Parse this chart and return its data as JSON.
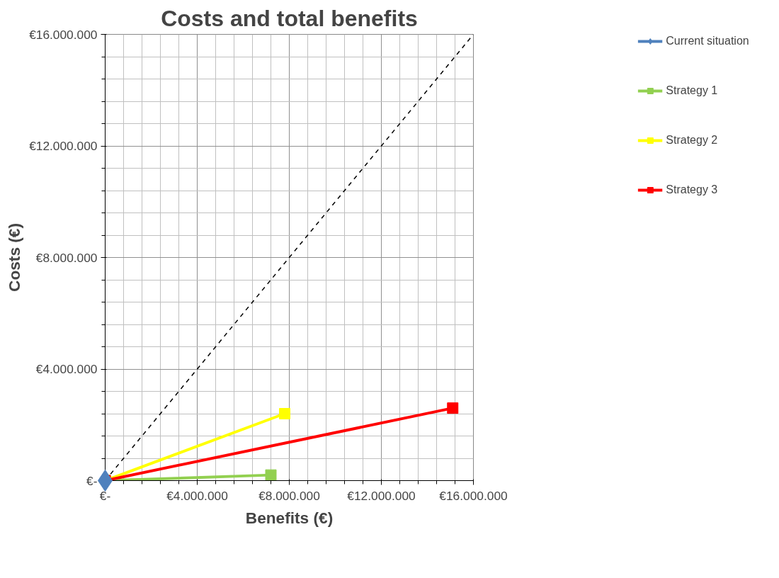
{
  "chart_data": {
    "type": "line",
    "title": "Costs and total benefits",
    "xlabel": "Benefits (€)",
    "ylabel": "Costs (€)",
    "xlim": [
      0,
      16000000
    ],
    "ylim": [
      0,
      16000000
    ],
    "xticks": [
      {
        "value": 0,
        "label": "€-"
      },
      {
        "value": 800000,
        "label": null
      },
      {
        "value": 1600000,
        "label": null
      },
      {
        "value": 2400000,
        "label": null
      },
      {
        "value": 3200000,
        "label": null
      },
      {
        "value": 4000000,
        "label": "€4.000.000"
      },
      {
        "value": 4800000,
        "label": null
      },
      {
        "value": 5600000,
        "label": null
      },
      {
        "value": 6400000,
        "label": null
      },
      {
        "value": 7200000,
        "label": null
      },
      {
        "value": 8000000,
        "label": "€8.000.000"
      },
      {
        "value": 8800000,
        "label": null
      },
      {
        "value": 9600000,
        "label": null
      },
      {
        "value": 10400000,
        "label": null
      },
      {
        "value": 11200000,
        "label": null
      },
      {
        "value": 12000000,
        "label": "€12.000.000"
      },
      {
        "value": 12800000,
        "label": null
      },
      {
        "value": 13600000,
        "label": null
      },
      {
        "value": 14400000,
        "label": null
      },
      {
        "value": 15200000,
        "label": null
      },
      {
        "value": 16000000,
        "label": "€16.000.000"
      }
    ],
    "yticks": [
      {
        "value": 0,
        "label": "€-"
      },
      {
        "value": 800000,
        "label": null
      },
      {
        "value": 1600000,
        "label": null
      },
      {
        "value": 2400000,
        "label": null
      },
      {
        "value": 3200000,
        "label": null
      },
      {
        "value": 4000000,
        "label": "€4.000.000"
      },
      {
        "value": 4800000,
        "label": null
      },
      {
        "value": 5600000,
        "label": null
      },
      {
        "value": 6400000,
        "label": null
      },
      {
        "value": 7200000,
        "label": null
      },
      {
        "value": 8000000,
        "label": "€8.000.000"
      },
      {
        "value": 8800000,
        "label": null
      },
      {
        "value": 9600000,
        "label": null
      },
      {
        "value": 10400000,
        "label": null
      },
      {
        "value": 11200000,
        "label": null
      },
      {
        "value": 12000000,
        "label": "€12.000.000"
      },
      {
        "value": 12800000,
        "label": null
      },
      {
        "value": 13600000,
        "label": null
      },
      {
        "value": 14400000,
        "label": null
      },
      {
        "value": 15200000,
        "label": null
      },
      {
        "value": 16000000,
        "label": "€16.000.000"
      }
    ],
    "grid": true,
    "legend": "right",
    "marker": "square",
    "line_style": "solid",
    "series": [
      {
        "color": "#000000",
        "x": [
          0,
          16000000
        ],
        "values": [
          0,
          16000000
        ],
        "line_style": "dashed",
        "marker": "none"
      },
      {
        "name": "Current situation",
        "color": "#4f81bd",
        "x": [
          0
        ],
        "values": [
          0
        ],
        "marker": "diamond"
      },
      {
        "name": "Strategy 1",
        "color": "#92d050",
        "x": [
          0,
          7200000
        ],
        "values": [
          0,
          200000
        ]
      },
      {
        "name": "Strategy 2",
        "color": "#ffff00",
        "x": [
          0,
          7800000
        ],
        "values": [
          0,
          2400000
        ]
      },
      {
        "name": "Strategy 3",
        "color": "#ff0000",
        "x": [
          0,
          15100000
        ],
        "values": [
          0,
          2600000
        ]
      }
    ]
  }
}
